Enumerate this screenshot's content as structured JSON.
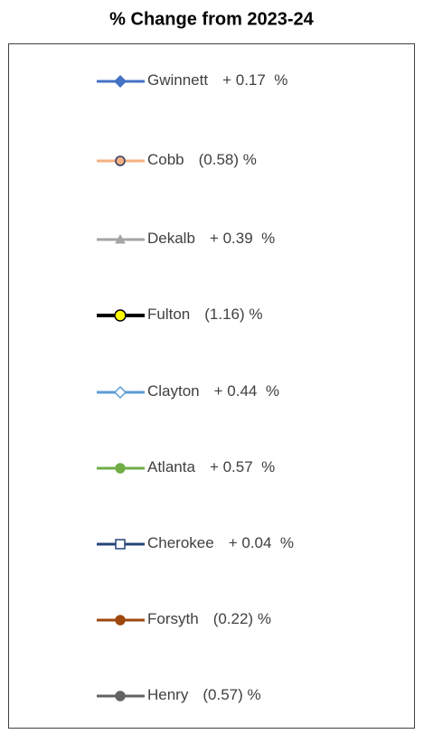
{
  "title": "% Change from 2023-24",
  "items": [
    {
      "name": "Gwinnett",
      "change": "+ 0.17  %",
      "color": "#4472c4",
      "marker": "diamond",
      "marker_fill": "#4472c4"
    },
    {
      "name": "Cobb",
      "change": "(0.58) %",
      "color": "#f4b183",
      "marker": "circle",
      "marker_fill": "#f4b183",
      "marker_stroke": "#2f3b63"
    },
    {
      "name": "Dekalb",
      "change": "+ 0.39  %",
      "color": "#a5a5a5",
      "marker": "triangle",
      "marker_fill": "#a5a5a5"
    },
    {
      "name": "Fulton",
      "change": "(1.16) %",
      "color": "#000000",
      "marker": "circle",
      "marker_fill": "#ffff00",
      "marker_stroke": "#000000"
    },
    {
      "name": "Clayton",
      "change": "+ 0.44  %",
      "color": "#5b9bd5",
      "marker": "diamond",
      "marker_fill": "#ffffff",
      "marker_stroke": "#5b9bd5"
    },
    {
      "name": "Atlanta",
      "change": "+ 0.57  %",
      "color": "#70ad47",
      "marker": "circle",
      "marker_fill": "#70ad47"
    },
    {
      "name": "Cherokee",
      "change": "+ 0.04  %",
      "color": "#264478",
      "marker": "square",
      "marker_fill": "#ffffff",
      "marker_stroke": "#264478"
    },
    {
      "name": "Forsyth",
      "change": "(0.22) %",
      "color": "#9e480e",
      "marker": "circle",
      "marker_fill": "#9e480e"
    },
    {
      "name": "Henry",
      "change": "(0.57) %",
      "color": "#636363",
      "marker": "circle",
      "marker_fill": "#636363"
    }
  ]
}
